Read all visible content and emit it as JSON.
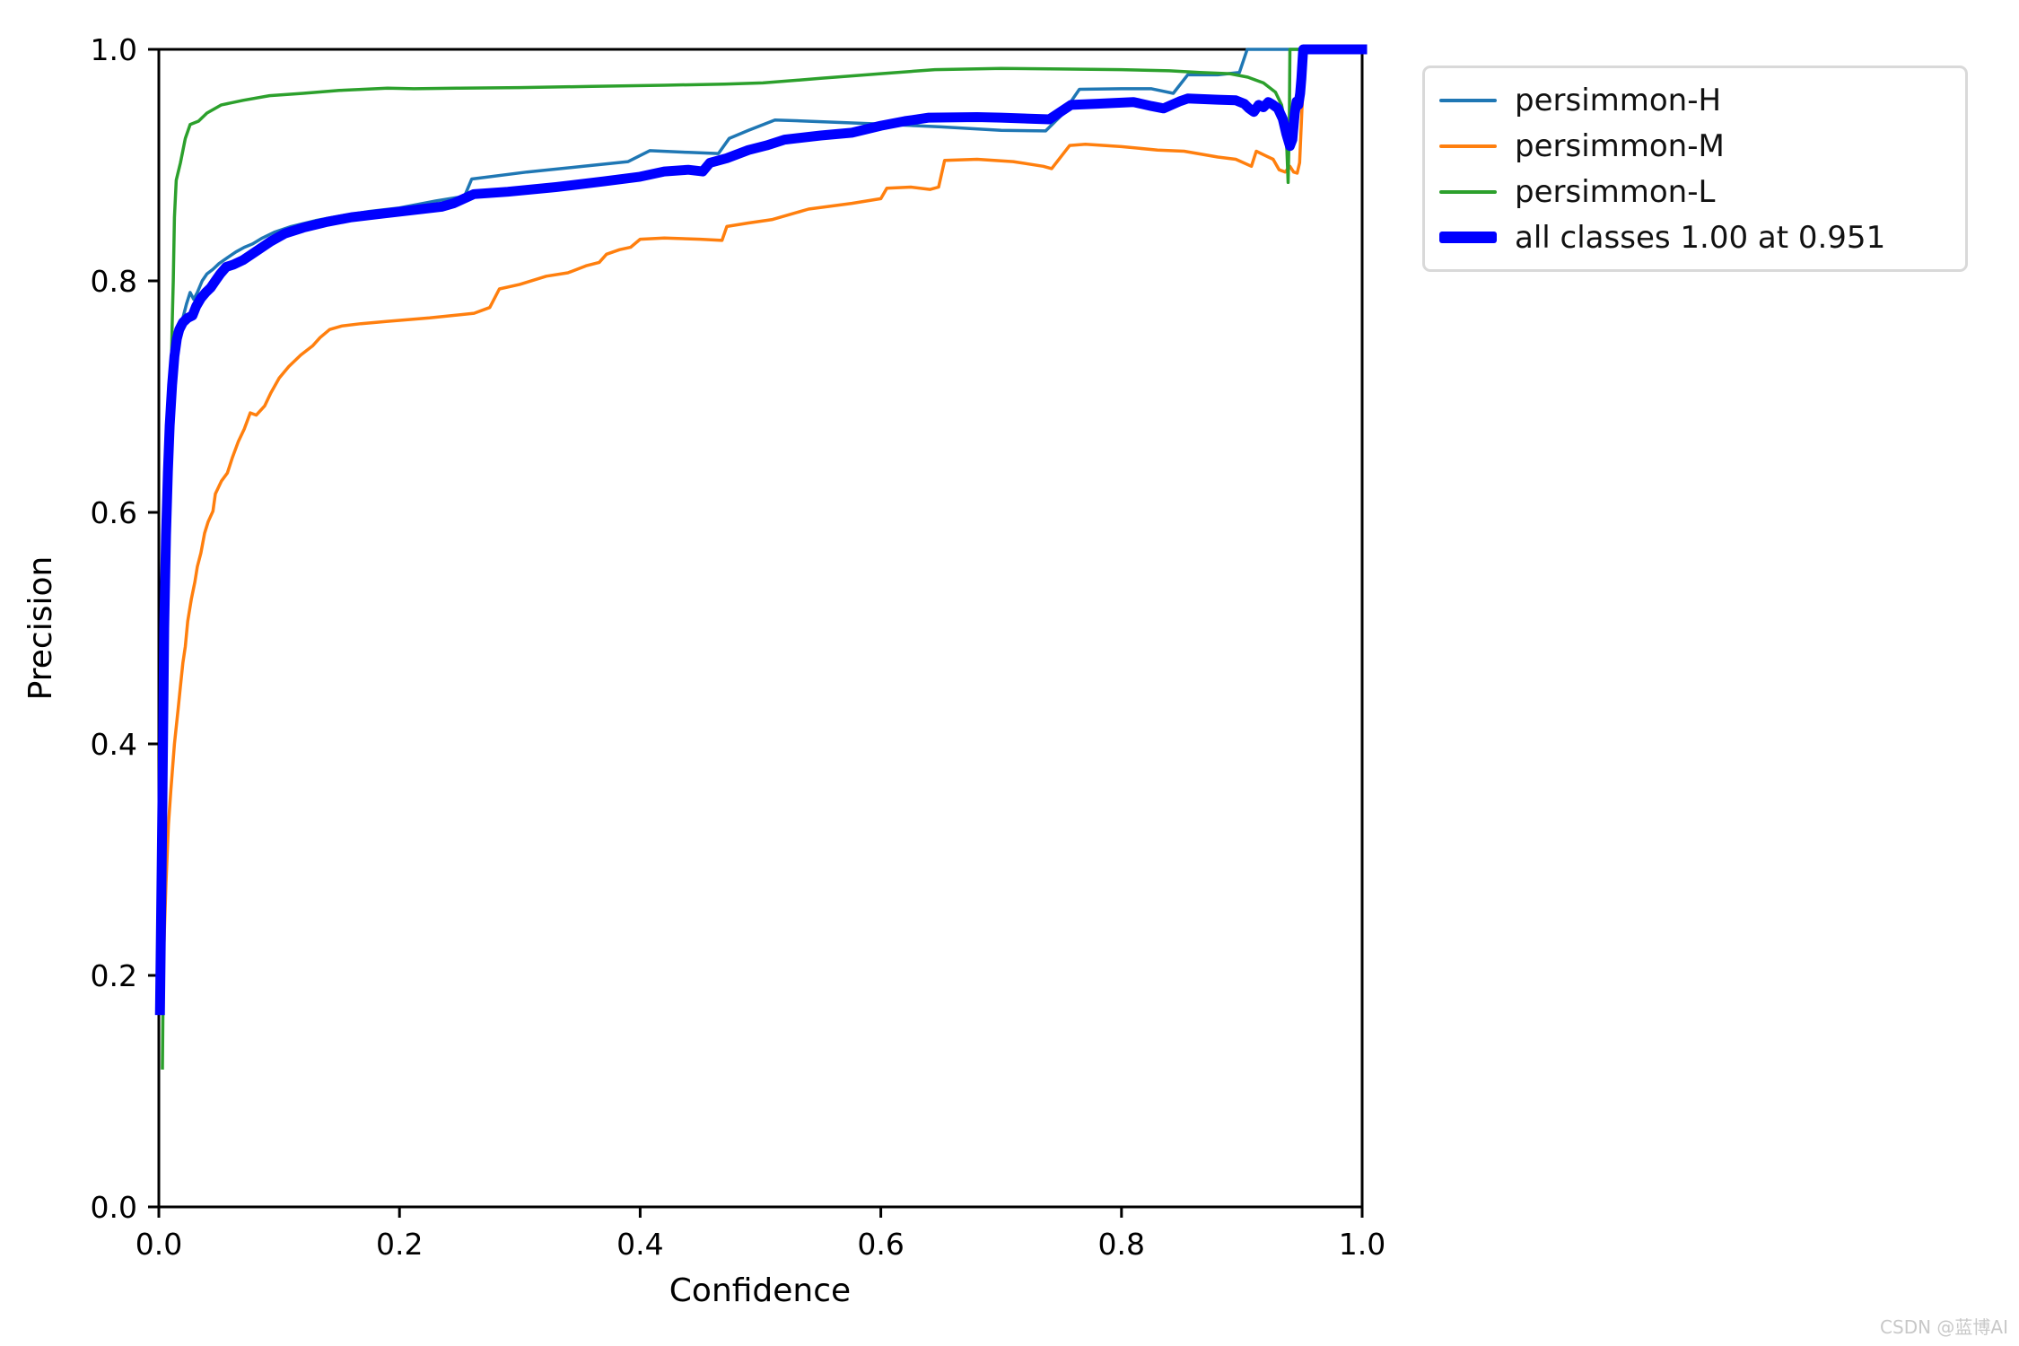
{
  "watermark": "CSDN @蓝博AI",
  "chart_data": {
    "type": "line",
    "title": "",
    "xlabel": "Confidence",
    "ylabel": "Precision",
    "xlim": [
      0.0,
      1.0
    ],
    "ylim": [
      0.0,
      1.0
    ],
    "grid": false,
    "legend_position": "outside-upper-right",
    "x_ticks": {
      "values": [
        0.0,
        0.2,
        0.4,
        0.6,
        0.8,
        1.0
      ],
      "labels": [
        "0.0",
        "0.2",
        "0.4",
        "0.6",
        "0.8",
        "1.0"
      ]
    },
    "y_ticks": {
      "values": [
        0.0,
        0.2,
        0.4,
        0.6,
        0.8,
        1.0
      ],
      "labels": [
        "0.0",
        "0.2",
        "0.4",
        "0.6",
        "0.8",
        "1.0"
      ]
    },
    "series": [
      {
        "name": "persimmon-H",
        "color": "#1f77b4",
        "line_width": 3.5,
        "points": [
          [
            0.002,
            0.17
          ],
          [
            0.004,
            0.35
          ],
          [
            0.006,
            0.5
          ],
          [
            0.008,
            0.6
          ],
          [
            0.01,
            0.66
          ],
          [
            0.012,
            0.7
          ],
          [
            0.014,
            0.73
          ],
          [
            0.016,
            0.75
          ],
          [
            0.018,
            0.76
          ],
          [
            0.02,
            0.768
          ],
          [
            0.023,
            0.78
          ],
          [
            0.026,
            0.79
          ],
          [
            0.029,
            0.784
          ],
          [
            0.032,
            0.79
          ],
          [
            0.036,
            0.8
          ],
          [
            0.04,
            0.806
          ],
          [
            0.045,
            0.81
          ],
          [
            0.05,
            0.815
          ],
          [
            0.057,
            0.82
          ],
          [
            0.064,
            0.825
          ],
          [
            0.071,
            0.829
          ],
          [
            0.078,
            0.832
          ],
          [
            0.086,
            0.837
          ],
          [
            0.096,
            0.842
          ],
          [
            0.11,
            0.847
          ],
          [
            0.13,
            0.852
          ],
          [
            0.15,
            0.856
          ],
          [
            0.175,
            0.86
          ],
          [
            0.2,
            0.863
          ],
          [
            0.23,
            0.869
          ],
          [
            0.254,
            0.873
          ],
          [
            0.26,
            0.888
          ],
          [
            0.306,
            0.894
          ],
          [
            0.353,
            0.899
          ],
          [
            0.39,
            0.903
          ],
          [
            0.408,
            0.9125
          ],
          [
            0.44,
            0.911
          ],
          [
            0.465,
            0.91
          ],
          [
            0.474,
            0.923
          ],
          [
            0.49,
            0.93
          ],
          [
            0.512,
            0.939
          ],
          [
            0.55,
            0.9375
          ],
          [
            0.6,
            0.9355
          ],
          [
            0.65,
            0.933
          ],
          [
            0.7,
            0.93
          ],
          [
            0.737,
            0.9295
          ],
          [
            0.752,
            0.945
          ],
          [
            0.76,
            0.958
          ],
          [
            0.765,
            0.9655
          ],
          [
            0.8,
            0.966
          ],
          [
            0.825,
            0.966
          ],
          [
            0.843,
            0.962
          ],
          [
            0.855,
            0.978
          ],
          [
            0.88,
            0.978
          ],
          [
            0.898,
            0.98
          ],
          [
            0.9045,
            1.0
          ],
          [
            1.0,
            1.0
          ]
        ]
      },
      {
        "name": "persimmon-M",
        "color": "#ff7f0e",
        "line_width": 3.5,
        "points": [
          [
            0.004,
            0.22
          ],
          [
            0.006,
            0.28
          ],
          [
            0.008,
            0.33
          ],
          [
            0.01,
            0.36
          ],
          [
            0.013,
            0.4
          ],
          [
            0.016,
            0.43
          ],
          [
            0.018,
            0.45
          ],
          [
            0.02,
            0.47
          ],
          [
            0.022,
            0.484
          ],
          [
            0.024,
            0.506
          ],
          [
            0.027,
            0.525
          ],
          [
            0.03,
            0.54
          ],
          [
            0.032,
            0.553
          ],
          [
            0.035,
            0.565
          ],
          [
            0.038,
            0.582
          ],
          [
            0.041,
            0.592
          ],
          [
            0.045,
            0.601
          ],
          [
            0.047,
            0.616
          ],
          [
            0.052,
            0.627
          ],
          [
            0.057,
            0.634
          ],
          [
            0.061,
            0.647
          ],
          [
            0.066,
            0.661
          ],
          [
            0.071,
            0.672
          ],
          [
            0.076,
            0.686
          ],
          [
            0.081,
            0.684
          ],
          [
            0.088,
            0.692
          ],
          [
            0.093,
            0.703
          ],
          [
            0.1,
            0.716
          ],
          [
            0.108,
            0.726
          ],
          [
            0.118,
            0.736
          ],
          [
            0.128,
            0.744
          ],
          [
            0.134,
            0.751
          ],
          [
            0.142,
            0.758
          ],
          [
            0.152,
            0.761
          ],
          [
            0.168,
            0.763
          ],
          [
            0.19,
            0.765
          ],
          [
            0.225,
            0.768
          ],
          [
            0.262,
            0.772
          ],
          [
            0.275,
            0.777
          ],
          [
            0.283,
            0.793
          ],
          [
            0.3,
            0.797
          ],
          [
            0.322,
            0.804
          ],
          [
            0.34,
            0.807
          ],
          [
            0.355,
            0.813
          ],
          [
            0.366,
            0.816
          ],
          [
            0.372,
            0.823
          ],
          [
            0.383,
            0.827
          ],
          [
            0.392,
            0.829
          ],
          [
            0.4,
            0.836
          ],
          [
            0.42,
            0.837
          ],
          [
            0.45,
            0.836
          ],
          [
            0.468,
            0.835
          ],
          [
            0.472,
            0.847
          ],
          [
            0.49,
            0.85
          ],
          [
            0.51,
            0.853
          ],
          [
            0.54,
            0.862
          ],
          [
            0.576,
            0.867
          ],
          [
            0.6,
            0.871
          ],
          [
            0.605,
            0.88
          ],
          [
            0.625,
            0.881
          ],
          [
            0.641,
            0.879
          ],
          [
            0.648,
            0.881
          ],
          [
            0.653,
            0.904
          ],
          [
            0.68,
            0.905
          ],
          [
            0.71,
            0.903
          ],
          [
            0.735,
            0.899
          ],
          [
            0.742,
            0.897
          ],
          [
            0.757,
            0.917
          ],
          [
            0.77,
            0.918
          ],
          [
            0.8,
            0.916
          ],
          [
            0.83,
            0.913
          ],
          [
            0.852,
            0.912
          ],
          [
            0.88,
            0.907
          ],
          [
            0.895,
            0.905
          ],
          [
            0.908,
            0.899
          ],
          [
            0.912,
            0.912
          ],
          [
            0.92,
            0.908
          ],
          [
            0.926,
            0.905
          ],
          [
            0.931,
            0.896
          ],
          [
            0.936,
            0.894
          ],
          [
            0.94,
            0.899
          ],
          [
            0.943,
            0.894
          ],
          [
            0.946,
            0.893
          ],
          [
            0.948,
            0.902
          ],
          [
            0.95,
            0.95
          ],
          [
            0.9525,
            1.0
          ],
          [
            1.0,
            1.0
          ]
        ]
      },
      {
        "name": "persimmon-L",
        "color": "#2ca02c",
        "line_width": 3.5,
        "points": [
          [
            0.003,
            0.12
          ],
          [
            0.005,
            0.35
          ],
          [
            0.007,
            0.52
          ],
          [
            0.009,
            0.63
          ],
          [
            0.01,
            0.7
          ],
          [
            0.011,
            0.76
          ],
          [
            0.012,
            0.8
          ],
          [
            0.013,
            0.855
          ],
          [
            0.0145,
            0.887
          ],
          [
            0.018,
            0.902
          ],
          [
            0.022,
            0.923
          ],
          [
            0.026,
            0.935
          ],
          [
            0.033,
            0.938
          ],
          [
            0.04,
            0.945
          ],
          [
            0.052,
            0.952
          ],
          [
            0.07,
            0.956
          ],
          [
            0.092,
            0.96
          ],
          [
            0.12,
            0.962
          ],
          [
            0.15,
            0.9645
          ],
          [
            0.19,
            0.9665
          ],
          [
            0.212,
            0.966
          ],
          [
            0.25,
            0.9665
          ],
          [
            0.3,
            0.967
          ],
          [
            0.36,
            0.968
          ],
          [
            0.42,
            0.969
          ],
          [
            0.47,
            0.97
          ],
          [
            0.502,
            0.971
          ],
          [
            0.55,
            0.975
          ],
          [
            0.6,
            0.979
          ],
          [
            0.645,
            0.9825
          ],
          [
            0.7,
            0.9835
          ],
          [
            0.75,
            0.983
          ],
          [
            0.8,
            0.9825
          ],
          [
            0.84,
            0.9815
          ],
          [
            0.865,
            0.98
          ],
          [
            0.89,
            0.979
          ],
          [
            0.905,
            0.976
          ],
          [
            0.918,
            0.971
          ],
          [
            0.928,
            0.963
          ],
          [
            0.933,
            0.952
          ],
          [
            0.936,
            0.935
          ],
          [
            0.9375,
            0.912
          ],
          [
            0.9385,
            0.885
          ],
          [
            0.9395,
            0.94
          ],
          [
            0.94,
            1.0
          ],
          [
            1.0,
            1.0
          ]
        ]
      },
      {
        "name": "all classes 1.00 at 0.951",
        "color": "#0000ff",
        "line_width": 11,
        "points": [
          [
            0.001,
            0.17
          ],
          [
            0.003,
            0.35
          ],
          [
            0.0045,
            0.5
          ],
          [
            0.006,
            0.58
          ],
          [
            0.0075,
            0.635
          ],
          [
            0.009,
            0.675
          ],
          [
            0.011,
            0.71
          ],
          [
            0.013,
            0.735
          ],
          [
            0.015,
            0.75
          ],
          [
            0.017,
            0.758
          ],
          [
            0.02,
            0.764
          ],
          [
            0.024,
            0.768
          ],
          [
            0.028,
            0.77
          ],
          [
            0.031,
            0.778
          ],
          [
            0.035,
            0.785
          ],
          [
            0.039,
            0.79
          ],
          [
            0.043,
            0.794
          ],
          [
            0.047,
            0.8
          ],
          [
            0.051,
            0.806
          ],
          [
            0.056,
            0.812
          ],
          [
            0.062,
            0.814
          ],
          [
            0.07,
            0.818
          ],
          [
            0.08,
            0.825
          ],
          [
            0.093,
            0.834
          ],
          [
            0.105,
            0.841
          ],
          [
            0.12,
            0.846
          ],
          [
            0.14,
            0.851
          ],
          [
            0.16,
            0.855
          ],
          [
            0.185,
            0.858
          ],
          [
            0.21,
            0.861
          ],
          [
            0.235,
            0.864
          ],
          [
            0.245,
            0.867
          ],
          [
            0.262,
            0.875
          ],
          [
            0.29,
            0.877
          ],
          [
            0.33,
            0.881
          ],
          [
            0.37,
            0.886
          ],
          [
            0.4,
            0.89
          ],
          [
            0.42,
            0.8945
          ],
          [
            0.44,
            0.896
          ],
          [
            0.452,
            0.8945
          ],
          [
            0.458,
            0.902
          ],
          [
            0.472,
            0.906
          ],
          [
            0.49,
            0.913
          ],
          [
            0.505,
            0.917
          ],
          [
            0.52,
            0.922
          ],
          [
            0.55,
            0.9256
          ],
          [
            0.576,
            0.928
          ],
          [
            0.6,
            0.934
          ],
          [
            0.62,
            0.938
          ],
          [
            0.64,
            0.941
          ],
          [
            0.68,
            0.9415
          ],
          [
            0.7,
            0.941
          ],
          [
            0.74,
            0.9395
          ],
          [
            0.758,
            0.952
          ],
          [
            0.78,
            0.953
          ],
          [
            0.81,
            0.9545
          ],
          [
            0.825,
            0.951
          ],
          [
            0.835,
            0.949
          ],
          [
            0.848,
            0.955
          ],
          [
            0.855,
            0.9575
          ],
          [
            0.88,
            0.9565
          ],
          [
            0.895,
            0.956
          ],
          [
            0.902,
            0.953
          ],
          [
            0.906,
            0.949
          ],
          [
            0.91,
            0.946
          ],
          [
            0.914,
            0.952
          ],
          [
            0.918,
            0.95
          ],
          [
            0.922,
            0.9545
          ],
          [
            0.926,
            0.952
          ],
          [
            0.93,
            0.949
          ],
          [
            0.934,
            0.94
          ],
          [
            0.937,
            0.927
          ],
          [
            0.94,
            0.9165
          ],
          [
            0.942,
            0.922
          ],
          [
            0.944,
            0.945
          ],
          [
            0.9455,
            0.955
          ],
          [
            0.947,
            0.952
          ],
          [
            0.9485,
            0.962
          ],
          [
            0.9495,
            0.975
          ],
          [
            0.951,
            1.0
          ],
          [
            1.0,
            1.0
          ]
        ]
      }
    ]
  }
}
